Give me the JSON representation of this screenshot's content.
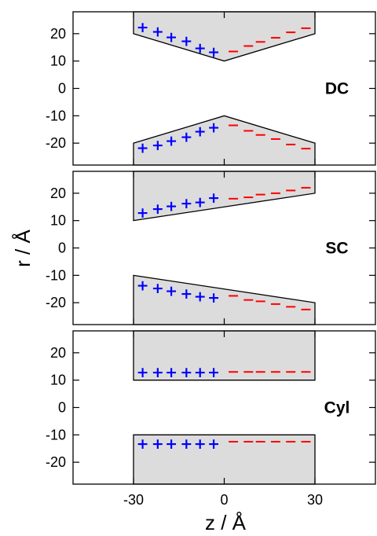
{
  "colors": {
    "pore_fill": "#dcdcdc",
    "positive": "#0000ff",
    "negative": "#ff0000",
    "frame": "#000000"
  },
  "chart_data": {
    "type": "scatter",
    "xlabel": "z / Å",
    "ylabel": "r / Å",
    "xlim": [
      -50,
      50
    ],
    "ylim": [
      -28,
      28
    ],
    "x_ticks": [
      -30,
      0,
      30
    ],
    "y_ticks": [
      20,
      10,
      0,
      -10,
      -20
    ],
    "grid": false,
    "panels": [
      {
        "label": "DC",
        "wall_top": {
          "x": [
            -30,
            0,
            30
          ],
          "r": [
            20,
            10,
            20
          ]
        },
        "wall_bottom": {
          "x": [
            -30,
            0,
            30
          ],
          "r": [
            -20,
            -10,
            -20
          ]
        },
        "positive_charges": {
          "marker": "+",
          "x": [
            -27,
            -22,
            -17.5,
            -12.5,
            -8,
            -3.5,
            -27,
            -22,
            -17.5,
            -12.5,
            -8,
            -3.5
          ],
          "r": [
            22.5,
            21,
            19,
            17.5,
            15,
            13.5,
            -21.5,
            -20.5,
            -19,
            -17.5,
            -15.5,
            -14
          ]
        },
        "negative_charges": {
          "marker": "−",
          "x": [
            3,
            8,
            12,
            17,
            22,
            27,
            3,
            8,
            12,
            17,
            22,
            27
          ],
          "r": [
            13.5,
            15.5,
            17,
            18.5,
            20.5,
            22,
            -13.5,
            -15.5,
            -17,
            -18.5,
            -20.5,
            -22
          ]
        }
      },
      {
        "label": "SC",
        "wall_top": {
          "x": [
            -30,
            30
          ],
          "r": [
            10,
            20
          ]
        },
        "wall_bottom": {
          "x": [
            -30,
            30
          ],
          "r": [
            -10,
            -20
          ]
        },
        "positive_charges": {
          "marker": "+",
          "x": [
            -27,
            -22,
            -17.5,
            -12.5,
            -8,
            -3.5,
            -27,
            -22,
            -17.5,
            -12.5,
            -8,
            -3.5
          ],
          "r": [
            13,
            14.5,
            15.5,
            16.5,
            17,
            18.5,
            -13.5,
            -14.5,
            -15.5,
            -16.5,
            -17.5,
            -18
          ]
        },
        "negative_charges": {
          "marker": "−",
          "x": [
            3,
            8,
            12,
            17,
            22,
            27,
            3,
            8,
            12,
            17,
            22,
            27
          ],
          "r": [
            18,
            18.5,
            19.5,
            20,
            21,
            22,
            -17.5,
            -19,
            -19.5,
            -20.5,
            -21.5,
            -22.5
          ]
        }
      },
      {
        "label": "Cyl",
        "wall_top": {
          "x": [
            -30,
            30
          ],
          "r": [
            10,
            10
          ]
        },
        "wall_bottom": {
          "x": [
            -30,
            30
          ],
          "r": [
            -10,
            -10
          ]
        },
        "positive_charges": {
          "marker": "+",
          "x": [
            -27,
            -22,
            -17.5,
            -12.5,
            -8,
            -3.5,
            -27,
            -22,
            -17.5,
            -12.5,
            -8,
            -3.5
          ],
          "r": [
            13,
            13,
            13,
            13,
            13,
            13,
            -13,
            -13,
            -13,
            -13,
            -13,
            -13
          ]
        },
        "negative_charges": {
          "marker": "−",
          "x": [
            3,
            8,
            12,
            17,
            22,
            27,
            3,
            8,
            12,
            17,
            22,
            27
          ],
          "r": [
            13,
            13,
            13,
            13,
            13,
            13,
            -12.5,
            -12.5,
            -12.5,
            -12.5,
            -12.5,
            -12.5
          ]
        }
      }
    ]
  }
}
